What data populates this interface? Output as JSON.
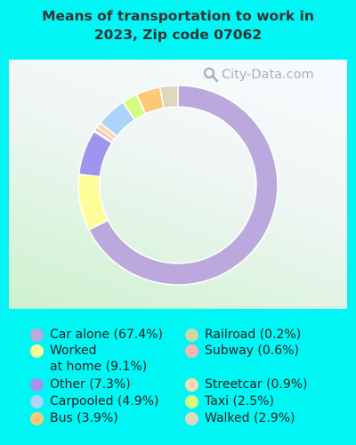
{
  "chart_data": {
    "type": "pie",
    "title_lines": [
      "Means of transportation to work in",
      "2023, Zip code 07062"
    ],
    "watermark": "City-Data.com",
    "donut": true,
    "slices": [
      {
        "label": "Car alone (67.4%)",
        "value": 67.4,
        "color": "#bba8dc"
      },
      {
        "label": "Worked at home (9.1%)",
        "lines": [
          "Worked",
          "at home (9.1%)"
        ],
        "value": 9.1,
        "color": "#fdfd99"
      },
      {
        "label": "Other (7.3%)",
        "value": 7.3,
        "color": "#9f95ec"
      },
      {
        "label": "Railroad (0.2%)",
        "value": 0.2,
        "color": "#c6d9a7"
      },
      {
        "label": "Subway (0.6%)",
        "value": 0.6,
        "color": "#f6b6b3"
      },
      {
        "label": "Streetcar (0.9%)",
        "value": 0.9,
        "color": "#fbd9b2"
      },
      {
        "label": "Carpooled (4.9%)",
        "value": 4.9,
        "color": "#acd3fb"
      },
      {
        "label": "Taxi (2.5%)",
        "value": 2.5,
        "color": "#d5fb82"
      },
      {
        "label": "Bus (3.9%)",
        "value": 3.9,
        "color": "#fdc878"
      },
      {
        "label": "Walked (2.9%)",
        "value": 2.9,
        "color": "#dcd9bd"
      }
    ]
  },
  "legend_order": [
    0,
    1,
    2,
    6,
    8,
    3,
    4,
    5,
    7,
    9
  ]
}
